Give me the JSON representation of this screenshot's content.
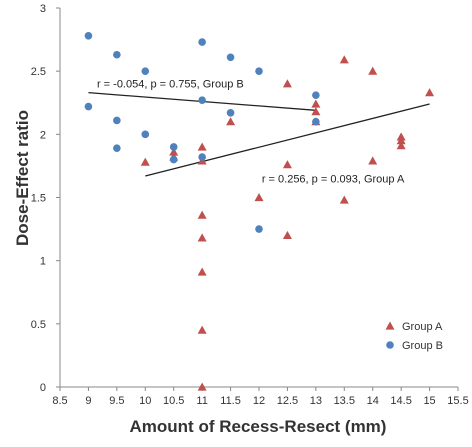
{
  "chart_data": {
    "type": "scatter",
    "xlabel": "Amount of Recess-Resect (mm)",
    "ylabel": "Dose-Effect ratio",
    "xlim": [
      8.5,
      15.5
    ],
    "ylim": [
      0,
      3
    ],
    "xticks": [
      "8.5",
      "9",
      "9.5",
      "10",
      "10.5",
      "11",
      "11.5",
      "12",
      "12.5",
      "13",
      "13.5",
      "14",
      "14.5",
      "15",
      "15.5"
    ],
    "yticks": [
      "0",
      "0.5",
      "1",
      "1.5",
      "2",
      "2.5",
      "3"
    ],
    "grid": false,
    "legend_position": "bottom-right",
    "series": [
      {
        "name": "Group A",
        "marker": "triangle",
        "color": "#c0504d",
        "points": [
          [
            10,
            1.78
          ],
          [
            10.5,
            1.86
          ],
          [
            10.5,
            1.82
          ],
          [
            11,
            1.9
          ],
          [
            11,
            1.79
          ],
          [
            11,
            1.36
          ],
          [
            11,
            1.18
          ],
          [
            11,
            0.91
          ],
          [
            11,
            0.45
          ],
          [
            11,
            0.0
          ],
          [
            11.5,
            2.1
          ],
          [
            12,
            1.5
          ],
          [
            12.5,
            2.4
          ],
          [
            12.5,
            1.76
          ],
          [
            12.5,
            1.2
          ],
          [
            13,
            2.24
          ],
          [
            13,
            2.18
          ],
          [
            13,
            2.1
          ],
          [
            13.5,
            2.59
          ],
          [
            13.5,
            1.48
          ],
          [
            14,
            2.5
          ],
          [
            14,
            1.79
          ],
          [
            14.5,
            1.98
          ],
          [
            14.5,
            1.95
          ],
          [
            14.5,
            1.91
          ],
          [
            15,
            2.33
          ]
        ]
      },
      {
        "name": "Group B",
        "marker": "circle",
        "color": "#4f81bd",
        "points": [
          [
            9,
            2.78
          ],
          [
            9,
            2.22
          ],
          [
            9.5,
            2.63
          ],
          [
            9.5,
            2.11
          ],
          [
            9.5,
            1.89
          ],
          [
            10,
            2.5
          ],
          [
            10,
            2.0
          ],
          [
            10.5,
            1.9
          ],
          [
            10.5,
            1.8
          ],
          [
            11,
            2.73
          ],
          [
            11,
            2.27
          ],
          [
            11,
            1.82
          ],
          [
            11.5,
            2.61
          ],
          [
            11.5,
            2.17
          ],
          [
            12,
            2.5
          ],
          [
            12,
            1.25
          ],
          [
            13,
            2.31
          ],
          [
            13,
            2.1
          ]
        ]
      }
    ],
    "trendlines": [
      {
        "label": "r = -0.054, p = 0.755, Group  B",
        "from": [
          9,
          2.33
        ],
        "to": [
          13,
          2.19
        ],
        "label_at": [
          9.15,
          2.37
        ]
      },
      {
        "label": "r = 0.256, p = 0.093, Group  A",
        "from": [
          10,
          1.67
        ],
        "to": [
          15,
          2.24
        ],
        "label_at": [
          12.05,
          1.62
        ]
      }
    ]
  }
}
